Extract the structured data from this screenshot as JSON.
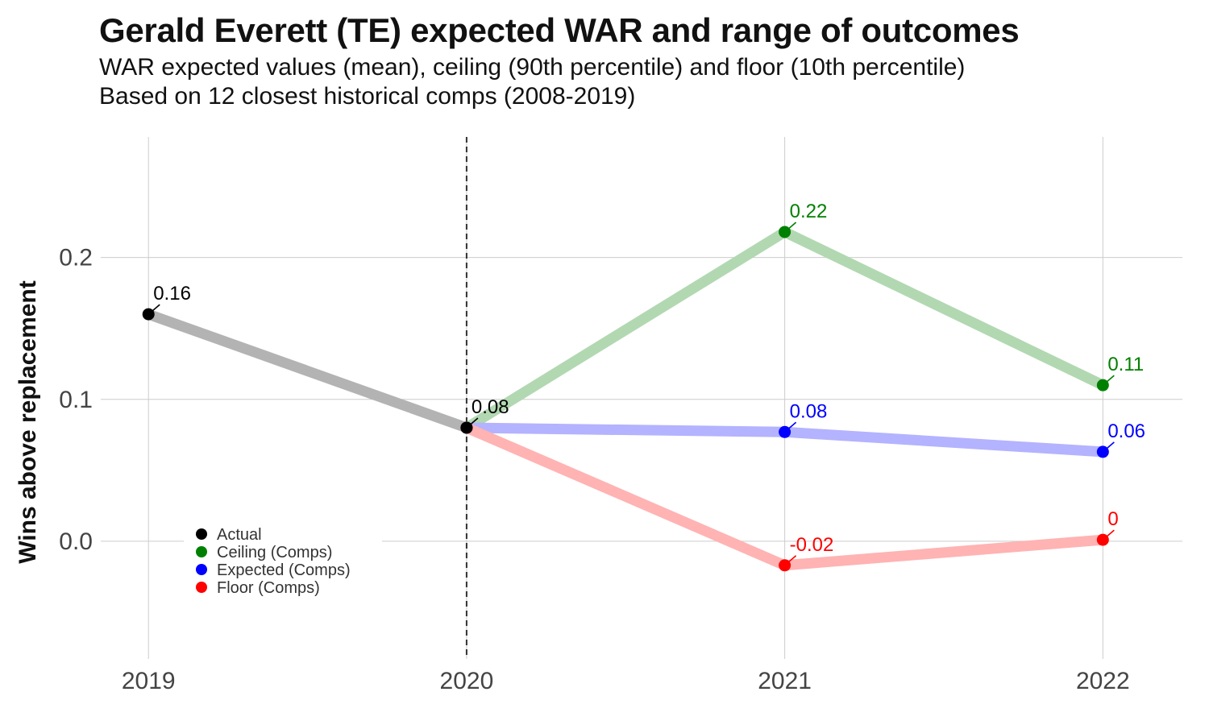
{
  "title": "Gerald Everett (TE) expected WAR and range of outcomes",
  "subtitle": [
    "WAR expected values (mean), ceiling (90th percentile) and floor (10th percentile)",
    "Based on 12 closest historical comps (2008-2019)"
  ],
  "chart_data": {
    "type": "line",
    "title": "Gerald Everett (TE) expected WAR and range of outcomes",
    "xlabel": "",
    "ylabel": "Wins above replacement",
    "x_ticks": [
      "2019",
      "2020",
      "2021",
      "2022"
    ],
    "y_ticks": [
      "0.0",
      "0.1",
      "0.2"
    ],
    "ylim": [
      -0.083,
      0.285
    ],
    "xlim": [
      2018.85,
      2022.25
    ],
    "grid": true,
    "vertical_reference_line": 2020,
    "legend_position": "bottom-left",
    "series": [
      {
        "name": "Actual",
        "color": "#000000",
        "line_color": "#b3b3b3",
        "points": [
          {
            "x": 2019,
            "y": 0.16,
            "label": "0.16"
          },
          {
            "x": 2020,
            "y": 0.08,
            "label": "0.08"
          }
        ]
      },
      {
        "name": "Ceiling (Comps)",
        "color": "#008000",
        "line_color": "#b2d8b2",
        "points": [
          {
            "x": 2020,
            "y": 0.08,
            "label": ""
          },
          {
            "x": 2021,
            "y": 0.218,
            "label": "0.22"
          },
          {
            "x": 2022,
            "y": 0.11,
            "label": "0.11"
          }
        ]
      },
      {
        "name": "Expected (Comps)",
        "color": "#0000ff",
        "line_color": "#b3b3ff",
        "points": [
          {
            "x": 2020,
            "y": 0.08,
            "label": ""
          },
          {
            "x": 2021,
            "y": 0.077,
            "label": "0.08"
          },
          {
            "x": 2022,
            "y": 0.063,
            "label": "0.06"
          }
        ]
      },
      {
        "name": "Floor (Comps)",
        "color": "#ff0000",
        "line_color": "#ffb3b3",
        "points": [
          {
            "x": 2020,
            "y": 0.08,
            "label": ""
          },
          {
            "x": 2021,
            "y": -0.017,
            "label": "-0.02"
          },
          {
            "x": 2022,
            "y": 0.001,
            "label": "0"
          }
        ]
      }
    ]
  }
}
